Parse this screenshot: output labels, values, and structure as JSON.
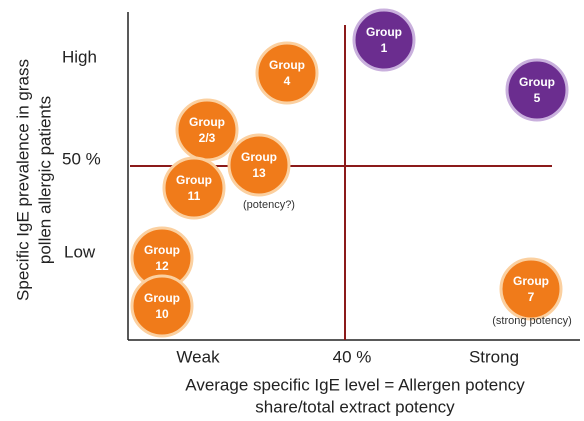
{
  "y_axis_label": [
    "Specific IgE prevalence in grass",
    "pollen allergic patients"
  ],
  "y_labels": [
    "High",
    "50 %",
    "Low"
  ],
  "x_labels": [
    "Weak",
    "40 %",
    "Strong"
  ],
  "x_axis_label": [
    "Average specific IgE level = Allergen potency",
    "share/total extract potency"
  ],
  "nodes": [
    {
      "line1": "Group",
      "line2": "1",
      "color": "#6b2d8f"
    },
    {
      "line1": "Group",
      "line2": "4",
      "color": "#f07b1a"
    },
    {
      "line1": "Group",
      "line2": "5",
      "color": "#6b2d8f"
    },
    {
      "line1": "Group",
      "line2": "2/3",
      "color": "#f07b1a"
    },
    {
      "line1": "Group",
      "line2": "13",
      "color": "#f07b1a",
      "note": "(potency?)"
    },
    {
      "line1": "Group",
      "line2": "11",
      "color": "#f07b1a"
    },
    {
      "line1": "Group",
      "line2": "12",
      "color": "#f07b1a"
    },
    {
      "line1": "Group",
      "line2": "10",
      "color": "#f07b1a"
    },
    {
      "line1": "Group",
      "line2": "7",
      "color": "#f07b1a",
      "note": "(strong potency)"
    }
  ]
}
